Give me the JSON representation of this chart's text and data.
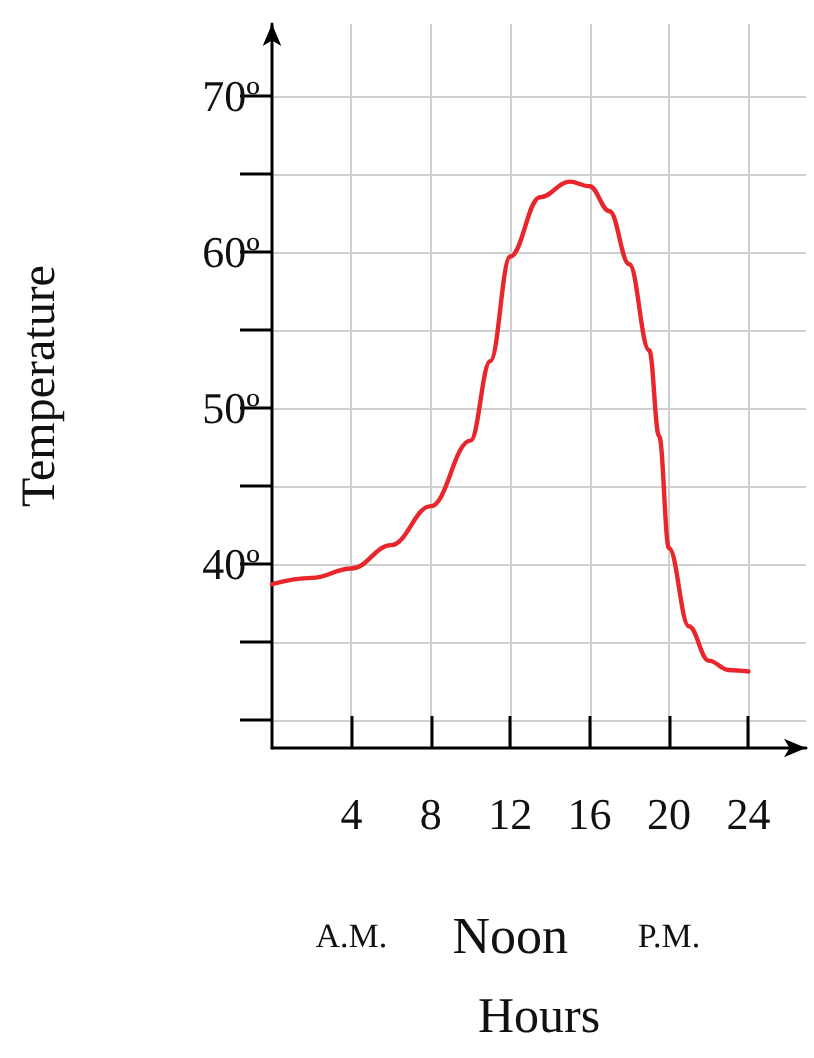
{
  "chart_data": {
    "type": "line",
    "xlabel": "Hours",
    "ylabel": "Temperature",
    "annotations": [
      "A.M.",
      "Noon",
      "P.M."
    ],
    "x": [
      0,
      2,
      4,
      6,
      8,
      10,
      11,
      12,
      13.5,
      15,
      16,
      17,
      18,
      19,
      19.5,
      20,
      21,
      22,
      23,
      24
    ],
    "series": [
      {
        "color": "#e8262b",
        "values": [
          38.7,
          39.1,
          39.7,
          41.2,
          43.7,
          47.9,
          53,
          59.7,
          63.5,
          64.5,
          64.2,
          62.6,
          59.2,
          53.7,
          48.2,
          41,
          36,
          33.8,
          33.2,
          33.1
        ]
      }
    ],
    "xlim": [
      0,
      26.9
    ],
    "ylim": [
      28.2,
      74.6
    ],
    "xticks": [
      4,
      8,
      12,
      16,
      20,
      24
    ],
    "yticks": [
      {
        "value": 30,
        "label": null
      },
      {
        "value": 35,
        "label": null
      },
      {
        "value": 40,
        "label": "40º"
      },
      {
        "value": 45,
        "label": null
      },
      {
        "value": 50,
        "label": "50º"
      },
      {
        "value": 55,
        "label": null
      },
      {
        "value": 60,
        "label": "60º"
      },
      {
        "value": 65,
        "label": null
      },
      {
        "value": 70,
        "label": "70º"
      }
    ],
    "grid": true,
    "marker": "none",
    "line_style": "solid"
  }
}
